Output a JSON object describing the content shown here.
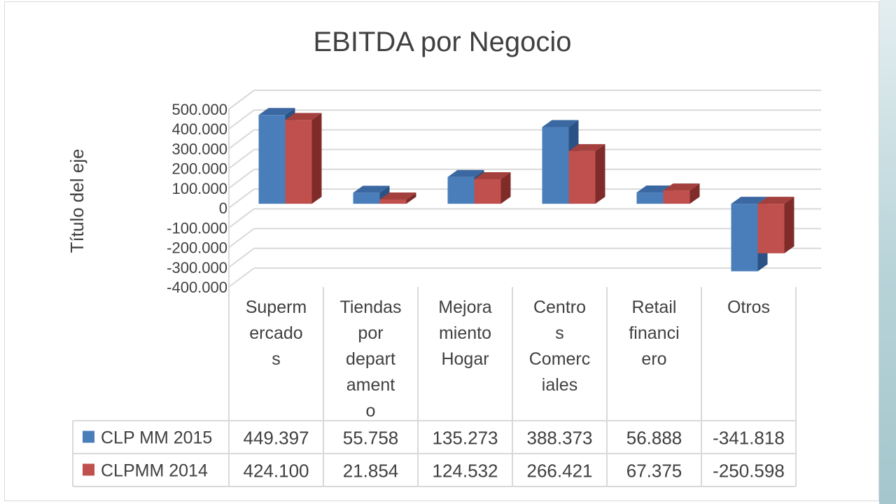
{
  "chart_data": {
    "type": "bar",
    "style": "3d-clustered-column-with-data-table",
    "title": "EBITDA por Negocio",
    "ylabel": "Título del eje",
    "xlabel": "",
    "ylim": [
      -400000,
      500000
    ],
    "yticks": [
      500000,
      400000,
      300000,
      200000,
      100000,
      0,
      -100000,
      -200000,
      -300000,
      -400000
    ],
    "ytick_labels": [
      "500.000",
      "400.000",
      "300.000",
      "200.000",
      "100.000",
      "0",
      "-100.000",
      "-200.000",
      "-300.000",
      "-400.000"
    ],
    "grid": true,
    "legend": "data-table",
    "categories": [
      "Supermercados",
      "Tiendas por departamento",
      "Mejoramiento Hogar",
      "Centros Comerciales",
      "Retail financiero",
      "Otros"
    ],
    "category_lines": [
      [
        "Superm",
        "ercado",
        "s"
      ],
      [
        "Tiendas",
        "por",
        "depart",
        "ament",
        "o"
      ],
      [
        "Mejora",
        "miento",
        "Hogar"
      ],
      [
        "Centro",
        "s",
        "Comerc",
        "iales"
      ],
      [
        "Retail",
        "financi",
        "ero"
      ],
      [
        "Otros"
      ]
    ],
    "series": [
      {
        "name": "CLP MM 2015",
        "color": "#4a7ebb",
        "side_color": "#2b5285",
        "top_color": "#3b68a0",
        "values": [
          449397,
          55758,
          135273,
          388373,
          56888,
          -341818
        ],
        "labels": [
          "449.397",
          "55.758",
          "135.273",
          "388.373",
          "56.888",
          "-341.818"
        ]
      },
      {
        "name": "CLPMM 2014",
        "color": "#c0504d",
        "side_color": "#7f2b29",
        "top_color": "#a33f3c",
        "values": [
          424100,
          21854,
          124532,
          266421,
          67375,
          -250598
        ],
        "labels": [
          "424.100",
          "21.854",
          "124.532",
          "266.421",
          "67.375",
          "-250.598"
        ]
      }
    ]
  }
}
